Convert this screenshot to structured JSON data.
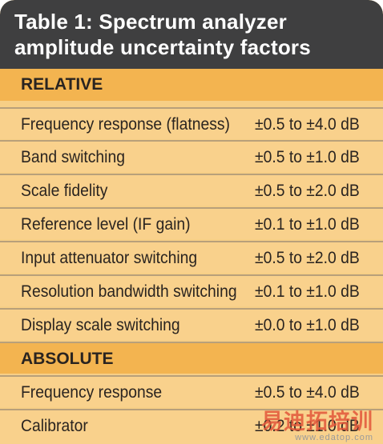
{
  "title_line1": "Table 1: Spectrum analyzer",
  "title_line2": "amplitude uncertainty factors",
  "relative_header": "RELATIVE",
  "relative_rows": [
    {
      "label": "Frequency response (flatness)",
      "value": "±0.5 to ±4.0 dB"
    },
    {
      "label": "Band switching",
      "value": "±0.5 to ±1.0 dB"
    },
    {
      "label": "Scale fidelity",
      "value": "±0.5 to ±2.0 dB"
    },
    {
      "label": "Reference level (IF gain)",
      "value": "±0.1 to ±1.0 dB"
    },
    {
      "label": "Input attenuator switching",
      "value": "±0.5 to ±2.0 dB"
    },
    {
      "label": "Resolution bandwidth switching",
      "value": "±0.1 to ±1.0 dB"
    },
    {
      "label": "Display scale switching",
      "value": "±0.0 to ±1.0 dB"
    }
  ],
  "absolute_header": "ABSOLUTE",
  "absolute_rows": [
    {
      "label": "Frequency response",
      "value": "±0.5 to ±4.0 dB"
    },
    {
      "label": "Calibrator",
      "value": "±0.2 to ±1.0 dB"
    }
  ],
  "watermark": {
    "mark": "易迪拓培训",
    "url": "www.edatop.com"
  },
  "colors": {
    "header_bg": "#3f3f40",
    "section_bg": "#f3b450",
    "row_bg": "#f9d18c"
  }
}
